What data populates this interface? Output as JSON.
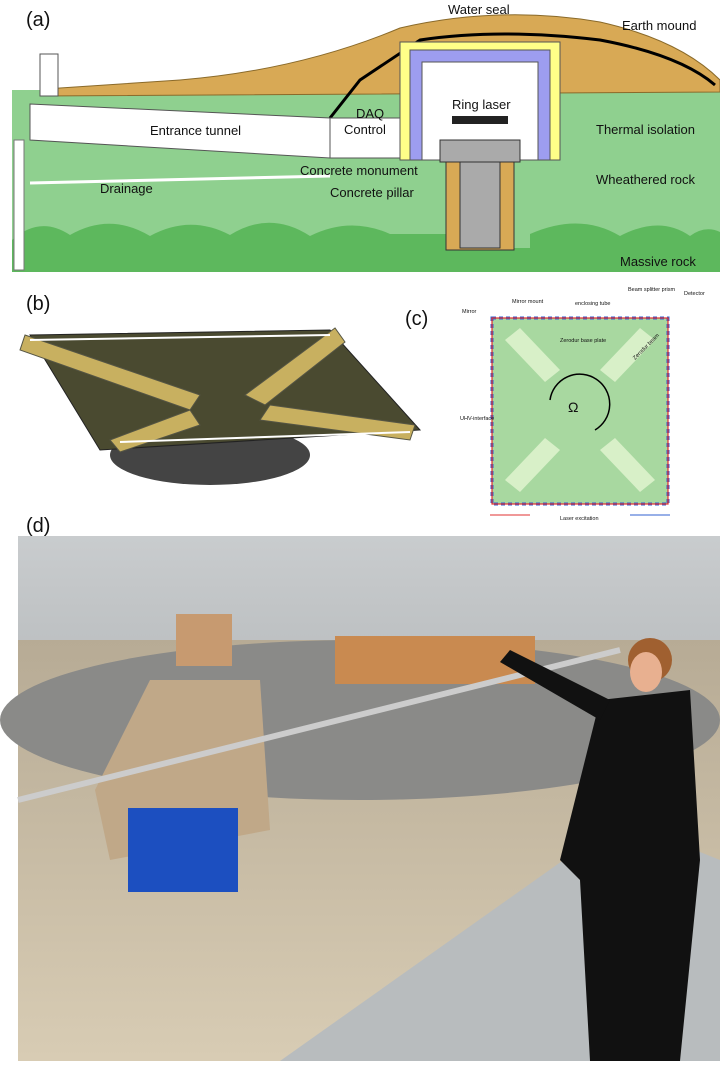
{
  "panel_a": {
    "label": "(a)",
    "texts": [
      "Water seal",
      "Earth mound",
      "Ring laser",
      "Entrance tunnel",
      "DAQ",
      "Control",
      "Thermal isolation",
      "Drainage",
      "Concrete monument",
      "Wheathered rock",
      "Concrete pillar",
      "Massive rock"
    ]
  },
  "panel_b": {
    "label": "(b)"
  },
  "panel_c": {
    "label": "(c)",
    "texts": [
      "Mirror",
      "Mirror mount",
      "enclosing tube",
      "Beam splitter prism",
      "Detector",
      "Zerodur base plate",
      "Zerodur beam",
      "Ω",
      "UHV-interface",
      "Laser excitation"
    ]
  },
  "panel_d": {
    "label": "(d)"
  }
}
